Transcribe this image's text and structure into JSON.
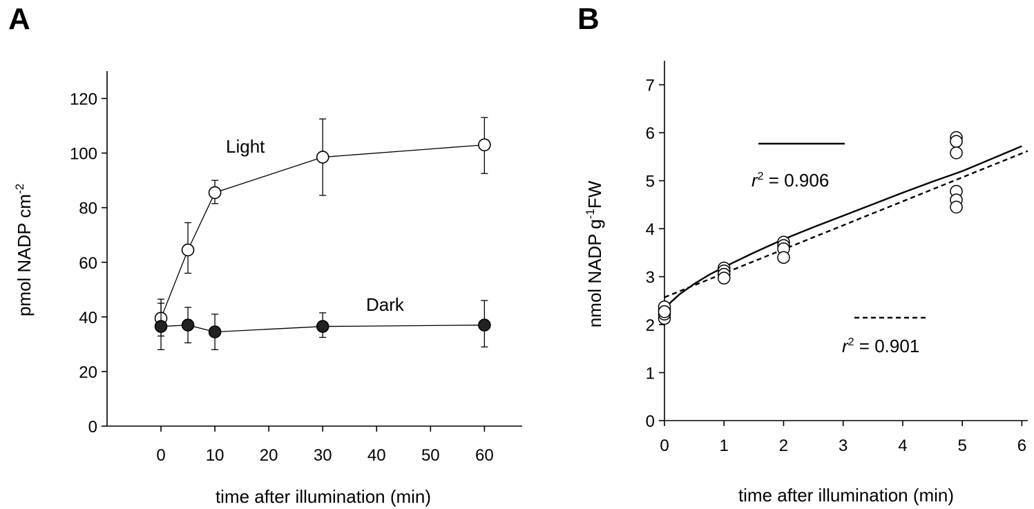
{
  "chart_data": [
    {
      "panel": "A",
      "type": "line",
      "xlabel": "time after illumination (min)",
      "ylabel": "pmol NADP cm",
      "ylabel_sup": "-2",
      "xlim": [
        -10,
        67
      ],
      "ylim": [
        0,
        130
      ],
      "xticks": [
        0,
        10,
        20,
        30,
        40,
        50,
        60
      ],
      "yticks": [
        0,
        20,
        40,
        60,
        80,
        100,
        120
      ],
      "grid": false,
      "series": [
        {
          "name": "Light",
          "marker": "open-circle",
          "x": [
            0,
            5,
            10,
            30,
            60
          ],
          "y": [
            39.5,
            64.5,
            85.5,
            98.5,
            103
          ],
          "err_low": [
            33,
            56,
            81.5,
            84.5,
            92.5
          ],
          "err_high": [
            46.5,
            74.5,
            90,
            112.5,
            113
          ]
        },
        {
          "name": "Dark",
          "marker": "filled-circle",
          "x": [
            0,
            5,
            10,
            30,
            60
          ],
          "y": [
            36.5,
            37,
            34.5,
            36.5,
            37
          ],
          "err_low": [
            28,
            30.5,
            28,
            32.5,
            29
          ],
          "err_high": [
            45,
            43.5,
            41,
            41.5,
            46
          ]
        }
      ]
    },
    {
      "panel": "B",
      "type": "scatter",
      "xlabel": "time after illumination (min)",
      "ylabel_parts": [
        "nmol NADP g",
        "-1",
        "FW"
      ],
      "xlim": [
        0,
        6.1
      ],
      "ylim": [
        0,
        7.5
      ],
      "xticks": [
        0,
        1,
        2,
        3,
        4,
        5,
        6
      ],
      "yticks": [
        0,
        1,
        2,
        3,
        4,
        5,
        6,
        7
      ],
      "grid": false,
      "points": {
        "x": [
          0,
          0,
          0,
          0,
          0,
          1,
          1,
          1,
          1,
          2,
          2,
          2,
          2,
          4.9,
          4.9,
          4.9,
          4.9,
          4.9,
          4.9
        ],
        "y": [
          2.13,
          2.22,
          2.3,
          2.37,
          2.27,
          3.18,
          3.12,
          3.05,
          2.97,
          3.72,
          3.65,
          3.58,
          3.4,
          5.9,
          5.82,
          5.58,
          4.78,
          4.6,
          4.45
        ]
      },
      "fits": [
        {
          "style": "solid",
          "r2_text": "= 0.906",
          "x": [
            0,
            0.1,
            0.25,
            0.5,
            0.75,
            1,
            1.5,
            2,
            2.5,
            3,
            3.5,
            4,
            4.5,
            5,
            5.5,
            6
          ],
          "y": [
            2.3,
            2.46,
            2.63,
            2.85,
            3.04,
            3.2,
            3.5,
            3.78,
            4.03,
            4.27,
            4.51,
            4.75,
            4.98,
            5.2,
            5.46,
            5.72
          ]
        },
        {
          "style": "dashed",
          "r2_text": "= 0.901",
          "x": [
            0,
            6.1
          ],
          "y": [
            2.57,
            5.62
          ]
        }
      ]
    }
  ]
}
